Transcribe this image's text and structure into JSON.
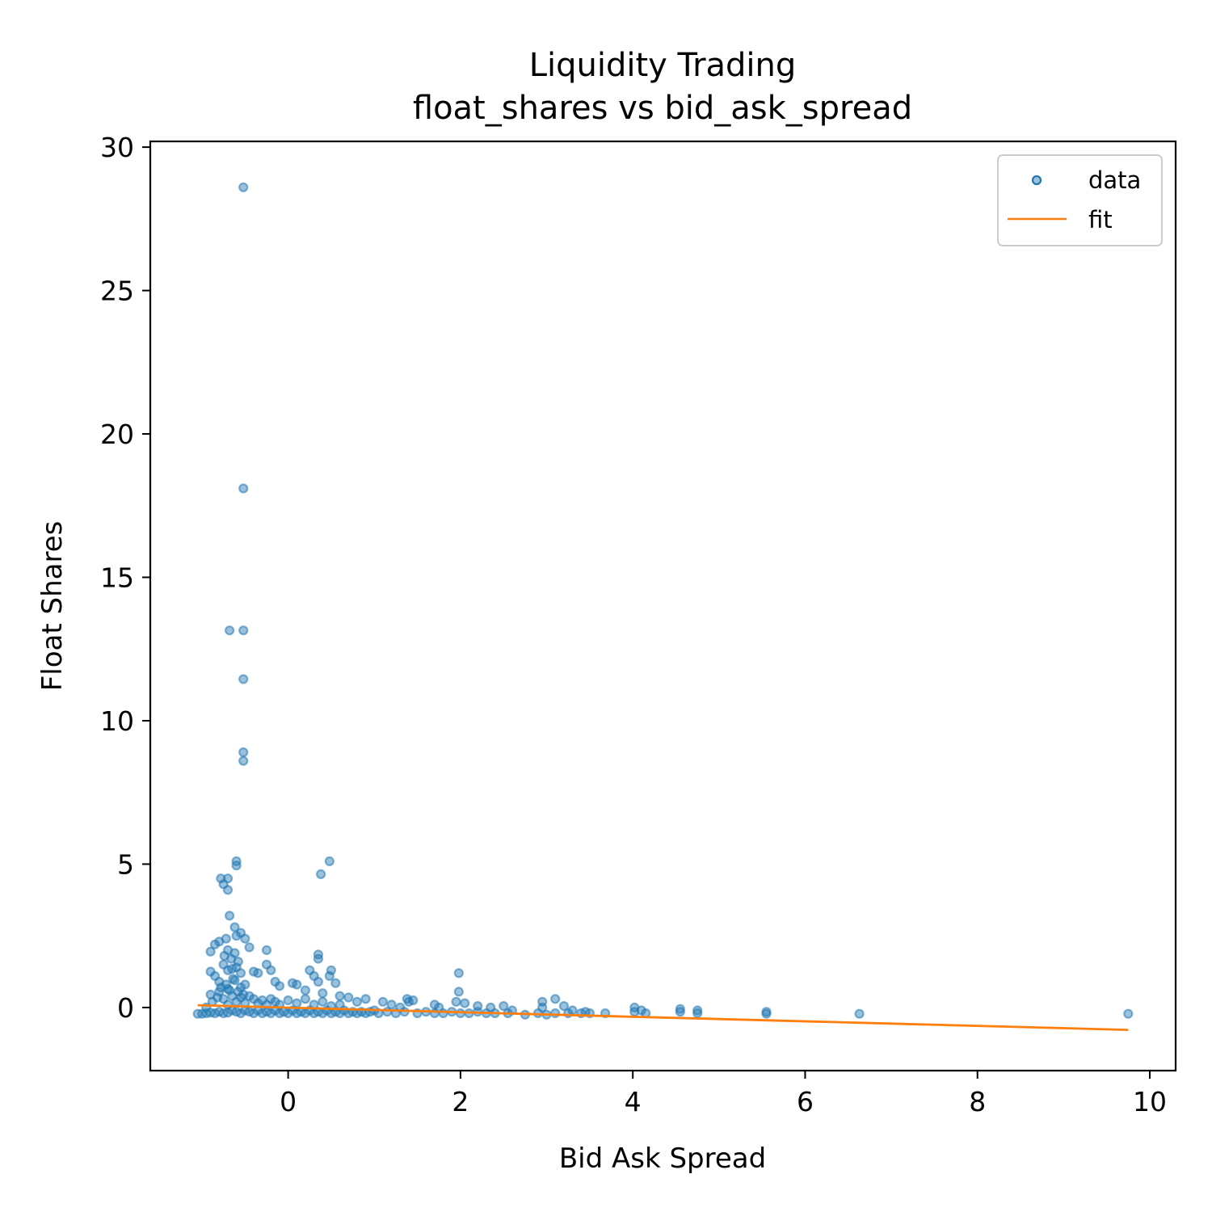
{
  "chart_data": {
    "type": "scatter",
    "title": "Liquidity Trading",
    "subtitle": "float_shares vs bid_ask_spread",
    "xlabel": "Bid Ask Spread",
    "ylabel": "Float Shares",
    "xlim": [
      -1.6,
      10.3
    ],
    "ylim": [
      -2.2,
      30.2
    ],
    "xticks": [
      0,
      2,
      4,
      6,
      8,
      10
    ],
    "yticks": [
      0,
      5,
      10,
      15,
      20,
      25,
      30
    ],
    "grid": false,
    "legend_position": "top-right",
    "colors": {
      "data": "#1f77b4",
      "fit": "#ff7f0e"
    },
    "series": [
      {
        "name": "data",
        "kind": "scatter",
        "points": [
          [
            -0.52,
            28.6
          ],
          [
            -0.52,
            18.1
          ],
          [
            -0.68,
            13.15
          ],
          [
            -0.52,
            13.15
          ],
          [
            -0.52,
            11.45
          ],
          [
            -0.52,
            8.9
          ],
          [
            -0.52,
            8.6
          ],
          [
            -0.6,
            5.1
          ],
          [
            -0.6,
            4.95
          ],
          [
            0.48,
            5.1
          ],
          [
            0.38,
            4.65
          ],
          [
            -0.78,
            4.5
          ],
          [
            -0.7,
            4.5
          ],
          [
            -0.75,
            4.3
          ],
          [
            -0.7,
            4.1
          ],
          [
            -0.68,
            3.2
          ],
          [
            -0.62,
            2.8
          ],
          [
            -0.55,
            2.6
          ],
          [
            -0.6,
            2.5
          ],
          [
            -0.72,
            2.4
          ],
          [
            -0.8,
            2.3
          ],
          [
            -0.5,
            2.4
          ],
          [
            -0.45,
            2.1
          ],
          [
            -0.85,
            2.2
          ],
          [
            -0.9,
            1.95
          ],
          [
            -0.25,
            2.0
          ],
          [
            0.35,
            1.85
          ],
          [
            0.35,
            1.7
          ],
          [
            -0.25,
            1.5
          ],
          [
            -0.2,
            1.3
          ],
          [
            -0.35,
            1.2
          ],
          [
            -0.4,
            1.25
          ],
          [
            -0.9,
            1.25
          ],
          [
            -0.85,
            1.1
          ],
          [
            -0.8,
            0.9
          ],
          [
            -0.75,
            1.5
          ],
          [
            -0.7,
            1.3
          ],
          [
            -0.65,
            1.35
          ],
          [
            -0.6,
            1.4
          ],
          [
            -0.55,
            1.2
          ],
          [
            -0.62,
            0.95
          ],
          [
            -0.55,
            0.7
          ],
          [
            -0.5,
            0.8
          ],
          [
            -0.7,
            0.65
          ],
          [
            -0.8,
            0.55
          ],
          [
            -0.9,
            0.45
          ],
          [
            -0.15,
            0.9
          ],
          [
            -0.1,
            0.75
          ],
          [
            0.05,
            0.85
          ],
          [
            0.1,
            0.8
          ],
          [
            0.25,
            1.3
          ],
          [
            0.3,
            1.1
          ],
          [
            0.5,
            1.3
          ],
          [
            0.48,
            1.1
          ],
          [
            0.35,
            0.9
          ],
          [
            0.55,
            0.85
          ],
          [
            0.2,
            0.6
          ],
          [
            0.4,
            0.5
          ],
          [
            0.6,
            0.4
          ],
          [
            0.7,
            0.35
          ],
          [
            0.9,
            0.3
          ],
          [
            0.8,
            0.2
          ],
          [
            1.1,
            0.2
          ],
          [
            1.2,
            0.1
          ],
          [
            1.38,
            0.3
          ],
          [
            1.4,
            0.2
          ],
          [
            1.45,
            0.25
          ],
          [
            1.3,
            0.0
          ],
          [
            1.0,
            -0.1
          ],
          [
            1.7,
            0.1
          ],
          [
            1.75,
            0.0
          ],
          [
            1.98,
            1.2
          ],
          [
            1.98,
            0.55
          ],
          [
            1.95,
            0.2
          ],
          [
            2.05,
            0.15
          ],
          [
            2.2,
            0.05
          ],
          [
            2.35,
            0.0
          ],
          [
            2.5,
            0.05
          ],
          [
            2.6,
            -0.1
          ],
          [
            2.95,
            0.2
          ],
          [
            3.1,
            0.3
          ],
          [
            2.95,
            0.0
          ],
          [
            3.2,
            0.05
          ],
          [
            3.3,
            -0.1
          ],
          [
            3.45,
            -0.15
          ],
          [
            3.5,
            -0.2
          ],
          [
            3.68,
            -0.2
          ],
          [
            4.02,
            0.0
          ],
          [
            4.1,
            -0.1
          ],
          [
            4.02,
            -0.15
          ],
          [
            4.15,
            -0.2
          ],
          [
            4.55,
            -0.05
          ],
          [
            4.55,
            -0.15
          ],
          [
            4.75,
            -0.1
          ],
          [
            4.75,
            -0.2
          ],
          [
            5.55,
            -0.15
          ],
          [
            5.55,
            -0.22
          ],
          [
            6.63,
            -0.22
          ],
          [
            9.75,
            -0.22
          ],
          [
            -1.05,
            -0.22
          ],
          [
            -1.0,
            -0.22
          ],
          [
            -0.95,
            -0.2
          ],
          [
            -0.9,
            -0.18
          ],
          [
            -0.85,
            -0.2
          ],
          [
            -0.8,
            -0.15
          ],
          [
            -0.75,
            -0.2
          ],
          [
            -0.7,
            -0.18
          ],
          [
            -0.65,
            -0.1
          ],
          [
            -0.6,
            -0.15
          ],
          [
            -0.55,
            -0.2
          ],
          [
            -0.5,
            -0.1
          ],
          [
            -0.45,
            -0.15
          ],
          [
            -0.4,
            -0.2
          ],
          [
            -0.35,
            -0.1
          ],
          [
            -0.3,
            -0.2
          ],
          [
            -0.25,
            -0.15
          ],
          [
            -0.2,
            -0.2
          ],
          [
            -0.15,
            -0.1
          ],
          [
            -0.1,
            -0.2
          ],
          [
            -0.05,
            -0.15
          ],
          [
            0.0,
            -0.2
          ],
          [
            0.05,
            -0.1
          ],
          [
            0.1,
            -0.2
          ],
          [
            0.15,
            -0.15
          ],
          [
            0.2,
            -0.2
          ],
          [
            0.25,
            -0.1
          ],
          [
            0.3,
            -0.2
          ],
          [
            0.35,
            -0.15
          ],
          [
            0.4,
            -0.2
          ],
          [
            0.45,
            -0.1
          ],
          [
            0.5,
            -0.2
          ],
          [
            0.55,
            -0.15
          ],
          [
            0.6,
            -0.2
          ],
          [
            0.65,
            -0.1
          ],
          [
            0.7,
            -0.2
          ],
          [
            0.75,
            -0.15
          ],
          [
            0.8,
            -0.2
          ],
          [
            0.85,
            -0.15
          ],
          [
            0.9,
            -0.2
          ],
          [
            0.95,
            -0.15
          ],
          [
            1.05,
            -0.2
          ],
          [
            1.15,
            -0.15
          ],
          [
            1.25,
            -0.2
          ],
          [
            1.35,
            -0.15
          ],
          [
            1.5,
            -0.2
          ],
          [
            1.6,
            -0.15
          ],
          [
            1.7,
            -0.2
          ],
          [
            1.8,
            -0.2
          ],
          [
            1.9,
            -0.15
          ],
          [
            2.0,
            -0.2
          ],
          [
            2.1,
            -0.2
          ],
          [
            2.2,
            -0.15
          ],
          [
            2.3,
            -0.2
          ],
          [
            2.4,
            -0.2
          ],
          [
            2.55,
            -0.2
          ],
          [
            2.75,
            -0.25
          ],
          [
            2.9,
            -0.2
          ],
          [
            3.0,
            -0.25
          ],
          [
            3.1,
            -0.2
          ],
          [
            3.25,
            -0.2
          ],
          [
            3.4,
            -0.2
          ],
          [
            -0.75,
            0.3
          ],
          [
            -0.7,
            0.1
          ],
          [
            -0.65,
            0.4
          ],
          [
            -0.6,
            0.2
          ],
          [
            -0.55,
            0.35
          ],
          [
            -0.5,
            0.15
          ],
          [
            -0.45,
            0.4
          ],
          [
            -0.4,
            0.3
          ],
          [
            -0.35,
            0.15
          ],
          [
            -0.3,
            0.25
          ],
          [
            -0.25,
            0.1
          ],
          [
            -0.2,
            0.3
          ],
          [
            -0.15,
            0.2
          ],
          [
            -0.1,
            0.1
          ],
          [
            0.0,
            0.25
          ],
          [
            0.1,
            0.15
          ],
          [
            0.2,
            0.3
          ],
          [
            0.3,
            0.1
          ],
          [
            0.4,
            0.2
          ],
          [
            0.5,
            0.05
          ],
          [
            0.6,
            0.1
          ],
          [
            -0.72,
            0.8
          ],
          [
            -0.68,
            0.6
          ],
          [
            -0.64,
            1.0
          ],
          [
            -0.58,
            0.55
          ],
          [
            -0.52,
            0.45
          ],
          [
            -0.78,
            0.7
          ],
          [
            -0.82,
            0.35
          ],
          [
            -0.88,
            0.2
          ],
          [
            -0.95,
            0.0
          ],
          [
            -0.66,
            1.7
          ],
          [
            -0.62,
            1.9
          ],
          [
            -0.58,
            1.6
          ],
          [
            -0.7,
            2.0
          ],
          [
            -0.74,
            1.8
          ]
        ]
      },
      {
        "name": "fit",
        "kind": "line",
        "points": [
          [
            -1.05,
            0.08
          ],
          [
            9.75,
            -0.78
          ]
        ]
      }
    ]
  }
}
